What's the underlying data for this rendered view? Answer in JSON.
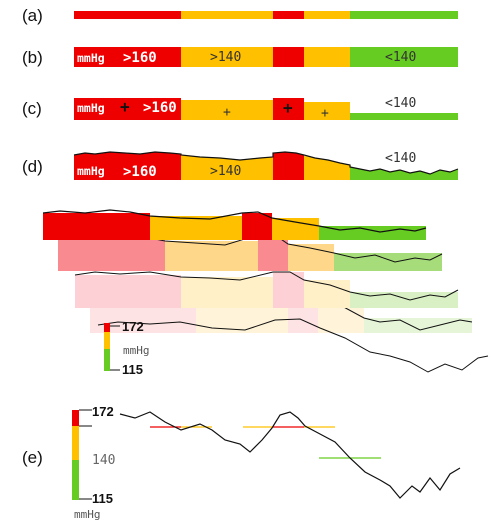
{
  "rows": {
    "a": {
      "label": "(a)"
    },
    "b": {
      "label": "(b)",
      "unit": "mmHg",
      "high": ">160",
      "mid": ">140",
      "low": "<140"
    },
    "c": {
      "label": "(c)",
      "unit": "mmHg",
      "high": ">160",
      "plus": "+",
      "low": "<140"
    },
    "d": {
      "label": "(d)",
      "unit": "mmHg",
      "high": ">160",
      "mid": ">140",
      "low": "<140"
    },
    "e": {
      "label": "(e)"
    }
  },
  "stack_scale": {
    "max": "172",
    "unit": "mmHg",
    "min": "115"
  },
  "e_scale": {
    "max": "172",
    "mid": "140",
    "min": "115",
    "unit": "mmHg"
  },
  "colors": {
    "red": "#ee0000",
    "orange": "#ffc000",
    "green": "#66cc22",
    "text_on_color": "#ffffff",
    "line": "#111111"
  },
  "thresholds_mmHg": {
    "high": 160,
    "mid": 140
  },
  "segments_pattern": [
    "red",
    "orange",
    "red",
    "orange",
    "green"
  ]
}
